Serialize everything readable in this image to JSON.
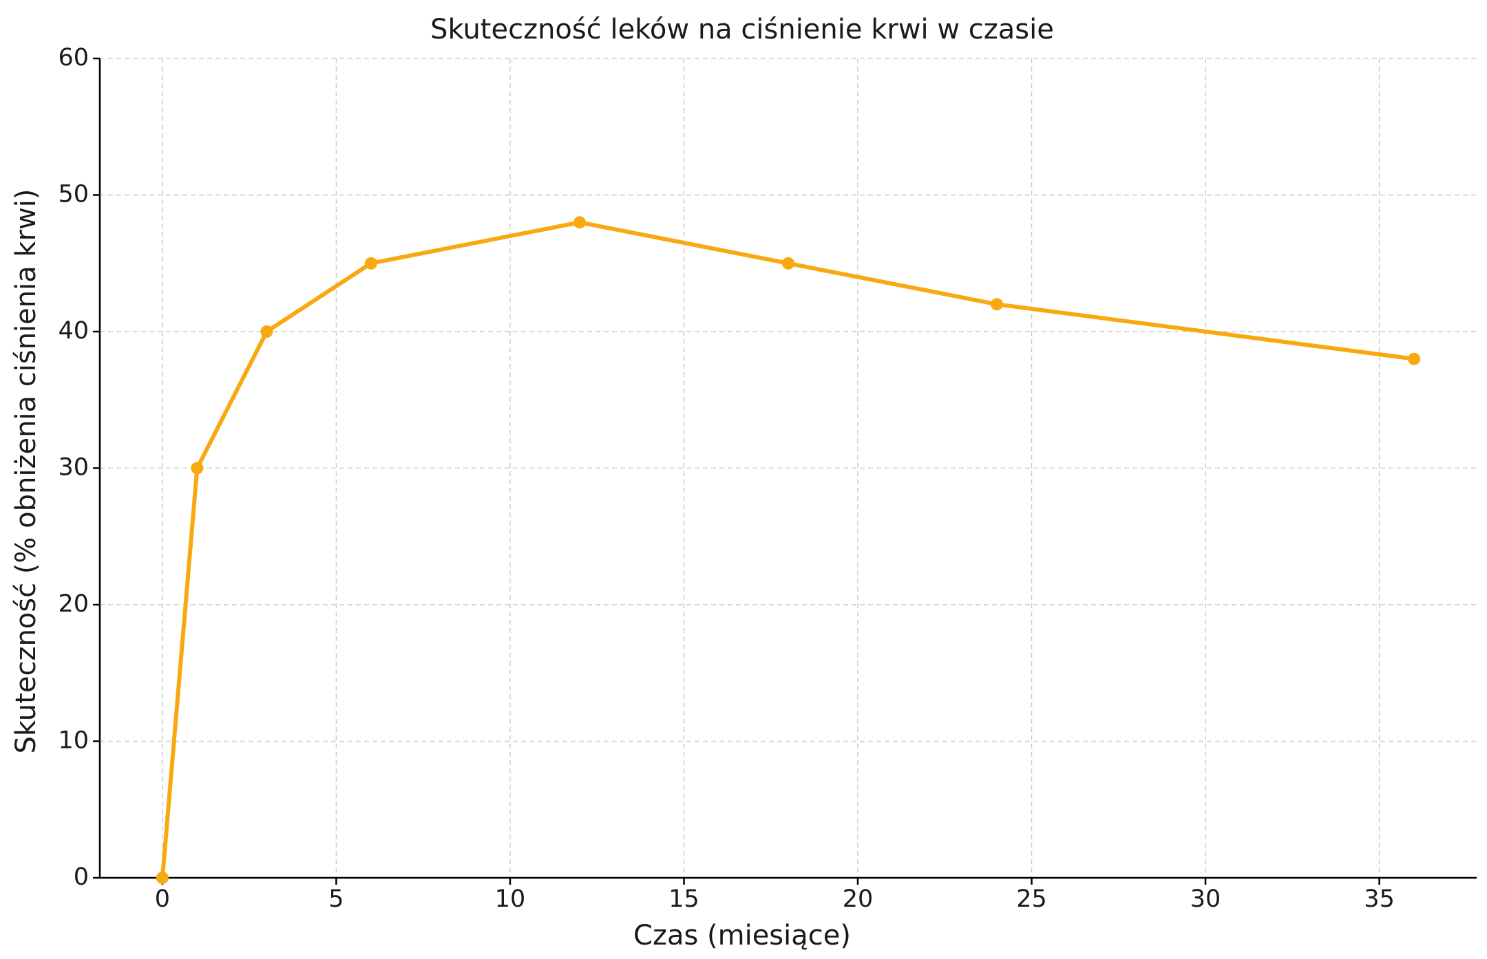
{
  "chart_data": {
    "type": "line",
    "title": "Skuteczność leków na ciśnienie krwi w czasie",
    "x_label": "Czas (miesiące)",
    "y_label": "Skuteczność (% obniżenia ciśnienia krwi)",
    "x": [
      0,
      1,
      3,
      6,
      12,
      18,
      24,
      36
    ],
    "series": [
      {
        "color": "#f8a912",
        "values": [
          0,
          30,
          40,
          45,
          48,
          45,
          42,
          38
        ]
      }
    ],
    "xlim": [
      -1.8,
      37.8
    ],
    "xticks": [
      0,
      5,
      10,
      15,
      20,
      25,
      30,
      35
    ],
    "ylim": [
      0,
      60
    ],
    "yticks": [
      0,
      10,
      20,
      30,
      40,
      50,
      60
    ],
    "grid": true
  }
}
